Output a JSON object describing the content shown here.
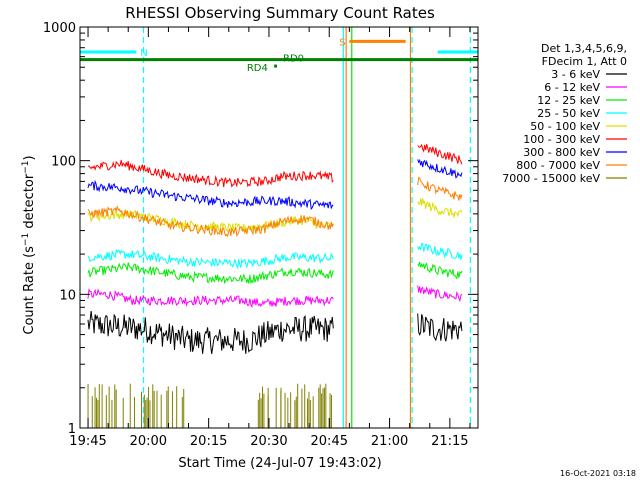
{
  "chart_data": {
    "type": "line",
    "title": "RHESSI Observing Summary Count Rates",
    "xlabel": "Start Time (24-Jul-07 19:43:02)",
    "ylabel_main": "Count Rate (s",
    "ylabel_sup1": "−1",
    "ylabel_mid": " detector",
    "ylabel_sup2": "−1",
    "ylabel_end": ")",
    "yscale": "log",
    "ylim": [
      1,
      1000
    ],
    "xlim_minutes": [
      -2,
      97
    ],
    "x_origin": "19:45",
    "y_ticks": [
      {
        "value": 1,
        "label": "1"
      },
      {
        "value": 10,
        "label": "10"
      },
      {
        "value": 100,
        "label": "100"
      },
      {
        "value": 1000,
        "label": "1000"
      }
    ],
    "x_ticks": [
      {
        "minute": 0,
        "label": "19:45"
      },
      {
        "minute": 15,
        "label": "20:00"
      },
      {
        "minute": 30,
        "label": "20:15"
      },
      {
        "minute": 45,
        "label": "20:30"
      },
      {
        "minute": 60,
        "label": "20:45"
      },
      {
        "minute": 75,
        "label": "21:00"
      },
      {
        "minute": 90,
        "label": "21:15"
      }
    ],
    "legend_header": [
      "Det 1,3,4,5,6,9,",
      "FDecim 1, Att 0"
    ],
    "segments": [
      [
        0,
        61
      ],
      [
        82,
        93
      ]
    ],
    "series": [
      {
        "name": "3 - 6 keV",
        "color": "#000000",
        "seg1": [
          [
            0,
            6
          ],
          [
            14,
            5.5
          ],
          [
            25,
            4.5
          ],
          [
            40,
            4.5
          ],
          [
            48,
            5.5
          ],
          [
            61,
            5.5
          ]
        ],
        "seg2": [
          [
            82,
            6
          ],
          [
            86,
            5.5
          ],
          [
            93,
            5.5
          ]
        ]
      },
      {
        "name": "6 - 12 keV",
        "color": "#ff00ff",
        "seg1": [
          [
            0,
            10
          ],
          [
            5,
            10
          ],
          [
            11,
            9
          ],
          [
            24,
            9
          ],
          [
            38,
            9
          ],
          [
            44,
            8.5
          ],
          [
            50,
            9
          ],
          [
            57,
            9
          ],
          [
            61,
            9
          ]
        ],
        "seg2": [
          [
            82,
            11
          ],
          [
            87,
            10
          ],
          [
            93,
            9.5
          ]
        ]
      },
      {
        "name": "12 - 25 keV",
        "color": "#00ee00",
        "seg1": [
          [
            0,
            14.5
          ],
          [
            10,
            16
          ],
          [
            25,
            13.5
          ],
          [
            40,
            13
          ],
          [
            50,
            15
          ],
          [
            61,
            14
          ]
        ],
        "seg2": [
          [
            82,
            17
          ],
          [
            87,
            15
          ],
          [
            93,
            14
          ]
        ]
      },
      {
        "name": "25 - 50 keV",
        "color": "#00ffff",
        "seg1": [
          [
            0,
            19
          ],
          [
            10,
            20
          ],
          [
            25,
            17.5
          ],
          [
            40,
            17
          ],
          [
            50,
            19
          ],
          [
            61,
            18.5
          ]
        ],
        "seg2": [
          [
            82,
            23
          ],
          [
            87,
            21
          ],
          [
            93,
            19.5
          ]
        ]
      },
      {
        "name": "50 - 100 keV",
        "color": "#dddd00",
        "seg1": [
          [
            0,
            38
          ],
          [
            10,
            40
          ],
          [
            25,
            33
          ],
          [
            38,
            31
          ],
          [
            45,
            33
          ],
          [
            52,
            36
          ],
          [
            61,
            32
          ]
        ],
        "seg2": [
          [
            82,
            50
          ],
          [
            87,
            43
          ],
          [
            93,
            39
          ]
        ]
      },
      {
        "name": "100 - 300 keV",
        "color": "#ff0000",
        "seg1": [
          [
            0,
            88
          ],
          [
            8,
            95
          ],
          [
            20,
            78
          ],
          [
            35,
            68
          ],
          [
            44,
            70
          ],
          [
            48,
            76
          ],
          [
            56,
            78
          ],
          [
            61,
            74
          ]
        ],
        "seg2": [
          [
            82,
            130
          ],
          [
            87,
            115
          ],
          [
            93,
            100
          ]
        ]
      },
      {
        "name": "300 - 800 keV",
        "color": "#0000ff",
        "seg1": [
          [
            0,
            65
          ],
          [
            8,
            63
          ],
          [
            20,
            55
          ],
          [
            35,
            48
          ],
          [
            44,
            50
          ],
          [
            48,
            50
          ],
          [
            56,
            47
          ],
          [
            61,
            46
          ]
        ],
        "seg2": [
          [
            82,
            100
          ],
          [
            87,
            88
          ],
          [
            93,
            78
          ]
        ]
      },
      {
        "name": "800 - 7000 keV",
        "color": "#ff7f00",
        "seg1": [
          [
            0,
            40
          ],
          [
            8,
            42
          ],
          [
            20,
            33
          ],
          [
            35,
            29
          ],
          [
            44,
            31
          ],
          [
            48,
            35
          ],
          [
            54,
            37
          ],
          [
            61,
            32
          ]
        ],
        "seg2": [
          [
            82,
            70
          ],
          [
            87,
            60
          ],
          [
            93,
            53
          ]
        ]
      },
      {
        "name": "7000 - 15000 keV",
        "color": "#808000",
        "seg1": [],
        "seg2": []
      }
    ],
    "flag_bars": [
      {
        "label": "N",
        "color": "#00ffff",
        "value": 650,
        "ranges": [
          [
            -2,
            12
          ],
          [
            87,
            97
          ]
        ],
        "label_minute": 13
      },
      {
        "label": "S",
        "color": "#ff7f00",
        "value": 780,
        "ranges": [
          [
            65,
            79
          ]
        ],
        "label_minute": 62.5
      },
      {
        "label": "RD0",
        "color": "#008000",
        "value": 570,
        "ranges": [
          [
            -2,
            97
          ]
        ],
        "label_minute": 48.5
      },
      {
        "label": "RD4",
        "color": "#008000",
        "value": 510,
        "ranges": [
          [
            46.3,
            47
          ]
        ],
        "label_minute": 39.5
      }
    ],
    "vertical_lines": [
      {
        "minute": 13.8,
        "color": "#00ffff",
        "style": "dashed"
      },
      {
        "minute": 63.5,
        "color": "#00ffff",
        "style": "solid"
      },
      {
        "minute": 64.2,
        "color": "#ff7f00",
        "style": "solid"
      },
      {
        "minute": 65.6,
        "color": "#00ee00",
        "style": "solid"
      },
      {
        "minute": 80.2,
        "color": "#ff7f00",
        "style": "solid"
      },
      {
        "minute": 80.6,
        "color": "#00ffff",
        "style": "dashed"
      },
      {
        "minute": 95.1,
        "color": "#00ffff",
        "style": "dashed"
      }
    ],
    "footer_date": "16-Oct-2021 03:18"
  }
}
